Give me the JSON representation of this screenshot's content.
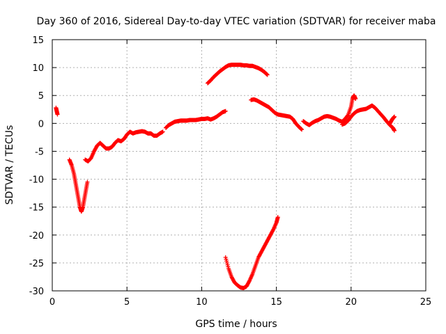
{
  "chart_data": {
    "type": "scatter",
    "title": "Day 360 of 2016, Sidereal Day-to-day VTEC variation (SDTVAR) for receiver maba",
    "xlabel": "GPS time / hours",
    "ylabel": "SDTVAR / TECUs",
    "xlim": [
      0,
      25
    ],
    "ylim": [
      -30,
      15
    ],
    "x_ticks": [
      0,
      5,
      10,
      15,
      20,
      25
    ],
    "y_ticks": [
      -30,
      -25,
      -20,
      -15,
      -10,
      -5,
      0,
      5,
      10,
      15
    ],
    "grid": true,
    "marker": "+",
    "color": "#ff0000",
    "series": [
      {
        "segments": [
          {
            "x": [
              0.25,
              0.3,
              0.35
            ],
            "y": [
              2.8,
              2.2,
              1.6
            ]
          },
          {
            "x": [
              1.15,
              1.3,
              1.45,
              1.55,
              1.65,
              1.75,
              1.85,
              1.95,
              2.05,
              2.15,
              2.25,
              2.35
            ],
            "y": [
              -6.5,
              -7.5,
              -9.0,
              -10.5,
              -12.0,
              -13.5,
              -15.0,
              -15.8,
              -15.0,
              -13.5,
              -12.0,
              -10.5
            ]
          },
          {
            "x": [
              2.2,
              2.4,
              2.6,
              2.8,
              3.0,
              3.2,
              3.4,
              3.6,
              3.8,
              4.0,
              4.2,
              4.4,
              4.6,
              4.8,
              5.0,
              5.2,
              5.4,
              5.6,
              5.8,
              6.0,
              6.2,
              6.4,
              6.6,
              6.8,
              7.0,
              7.2,
              7.4
            ],
            "y": [
              -6.5,
              -6.8,
              -6.2,
              -5.0,
              -4.0,
              -3.5,
              -4.0,
              -4.5,
              -4.5,
              -4.2,
              -3.5,
              -3.0,
              -3.2,
              -2.8,
              -2.0,
              -1.5,
              -1.8,
              -1.6,
              -1.5,
              -1.4,
              -1.5,
              -1.8,
              -1.8,
              -2.2,
              -2.2,
              -1.8,
              -1.5
            ]
          },
          {
            "x": [
              7.6,
              7.8,
              8.0,
              8.2,
              8.4,
              8.6,
              8.8,
              9.0,
              9.2,
              9.4,
              9.6,
              9.8,
              10.0,
              10.2,
              10.4,
              10.6,
              10.8,
              11.0,
              11.2,
              11.4,
              11.6
            ],
            "y": [
              -0.8,
              -0.3,
              0.0,
              0.3,
              0.4,
              0.5,
              0.5,
              0.5,
              0.6,
              0.6,
              0.6,
              0.7,
              0.8,
              0.8,
              0.9,
              0.7,
              0.9,
              1.2,
              1.6,
              2.0,
              2.2
            ]
          },
          {
            "x": [
              10.4,
              10.6,
              10.8,
              11.0,
              11.2,
              11.4,
              11.6,
              11.8,
              12.0,
              12.2,
              12.4,
              12.6,
              12.8,
              13.0,
              13.2,
              13.4,
              13.6,
              13.8,
              14.0,
              14.2,
              14.4
            ],
            "y": [
              7.2,
              7.7,
              8.3,
              8.8,
              9.3,
              9.7,
              10.1,
              10.4,
              10.5,
              10.5,
              10.5,
              10.5,
              10.4,
              10.4,
              10.3,
              10.3,
              10.1,
              9.9,
              9.6,
              9.2,
              8.7
            ]
          },
          {
            "x": [
              11.6,
              11.8,
              12.0,
              12.2,
              12.4,
              12.6,
              12.8,
              13.0,
              13.2,
              13.4,
              13.6,
              13.8,
              14.0,
              14.2,
              14.4,
              14.6,
              14.8,
              15.0,
              15.1
            ],
            "y": [
              -24.0,
              -26.0,
              -27.5,
              -28.5,
              -29.0,
              -29.4,
              -29.5,
              -29.2,
              -28.2,
              -27.0,
              -25.5,
              -24.0,
              -23.0,
              -22.0,
              -21.0,
              -20.0,
              -19.0,
              -17.8,
              -16.8
            ]
          },
          {
            "x": [
              13.3,
              13.5,
              13.7,
              13.9,
              14.1,
              14.3,
              14.5,
              14.7,
              14.9,
              15.1,
              15.3,
              15.5,
              15.7,
              15.9,
              16.1,
              16.3,
              16.5,
              16.7
            ],
            "y": [
              4.2,
              4.3,
              4.1,
              3.8,
              3.5,
              3.2,
              2.9,
              2.4,
              1.9,
              1.6,
              1.5,
              1.4,
              1.3,
              1.2,
              0.8,
              0.0,
              -0.6,
              -1.1
            ]
          },
          {
            "x": [
              16.8,
              17.0,
              17.2,
              17.4,
              17.6,
              17.8,
              18.0,
              18.2,
              18.4,
              18.6,
              18.8,
              19.0,
              19.2,
              19.4,
              19.6,
              19.8,
              20.0,
              20.1,
              20.2,
              20.3
            ],
            "y": [
              0.4,
              0.0,
              -0.3,
              0.1,
              0.4,
              0.6,
              0.9,
              1.2,
              1.3,
              1.2,
              1.0,
              0.8,
              0.5,
              0.3,
              0.8,
              1.5,
              3.0,
              4.5,
              5.0,
              4.4
            ]
          },
          {
            "x": [
              19.4,
              19.6,
              19.8,
              20.0,
              20.2,
              20.4,
              20.6,
              20.8,
              21.0,
              21.2,
              21.4,
              21.6,
              21.8,
              22.0,
              22.2,
              22.4,
              22.6,
              22.8,
              22.9
            ],
            "y": [
              -0.2,
              0.0,
              0.5,
              1.2,
              1.8,
              2.2,
              2.4,
              2.5,
              2.6,
              2.9,
              3.2,
              2.8,
              2.2,
              1.6,
              1.0,
              0.3,
              -0.3,
              -0.8,
              -1.3
            ]
          },
          {
            "x": [
              22.6,
              22.7,
              22.8,
              22.9
            ],
            "y": [
              0.0,
              0.5,
              0.9,
              1.2
            ]
          }
        ]
      }
    ]
  }
}
